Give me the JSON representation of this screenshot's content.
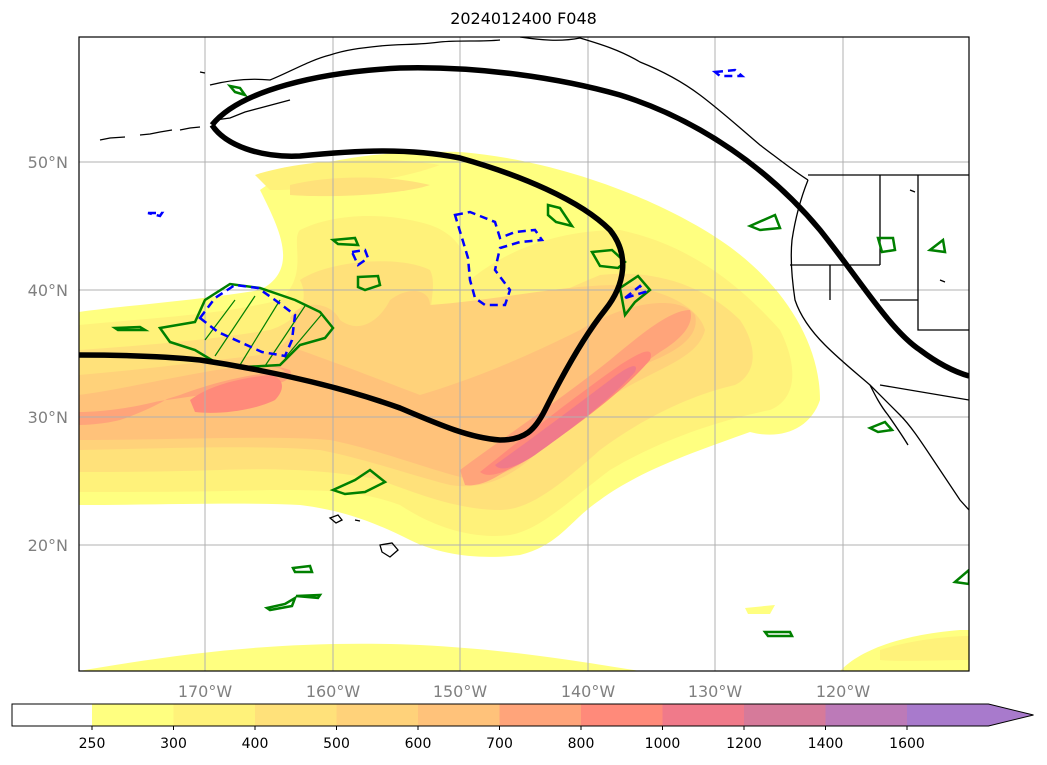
{
  "title": "2024012400 F048",
  "lat_labels": [
    "50°N",
    "40°N",
    "30°N",
    "20°N"
  ],
  "lon_labels": [
    "170°W",
    "160°W",
    "150°W",
    "140°W",
    "130°W",
    "120°W"
  ],
  "colorbar": {
    "levels": [
      "250",
      "300",
      "400",
      "500",
      "600",
      "700",
      "800",
      "1000",
      "1200",
      "1400",
      "1600"
    ],
    "colors": [
      "#ffffff",
      "#ffff80",
      "#fff27a",
      "#ffe17a",
      "#ffd27a",
      "#ffc27a",
      "#ffa47a",
      "#ff8a7a",
      "#f07a8a",
      "#d67a9a",
      "#bc7ab8",
      "#a87acc"
    ],
    "extend": "max"
  },
  "colors": {
    "jet_contour": "#000000",
    "positive_contour": "#008000",
    "negative_contour": "#0000ff",
    "gridline": "#b0b0b0",
    "coastline": "#000000"
  }
}
